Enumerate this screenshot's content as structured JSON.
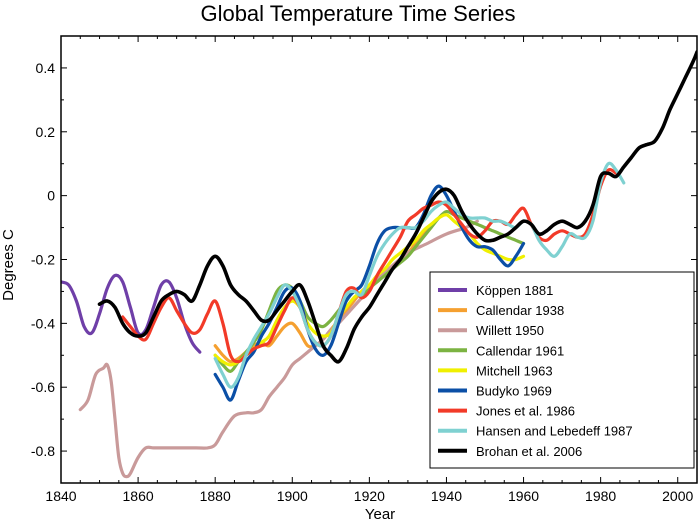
{
  "chart_data": {
    "type": "line",
    "title": "Global Temperature Time Series",
    "xlabel": "Year",
    "ylabel": "Degrees C",
    "xlim": [
      1840,
      2005
    ],
    "ylim": [
      -0.9,
      0.5
    ],
    "xticks": [
      1840,
      1860,
      1880,
      1900,
      1920,
      1940,
      1960,
      1980,
      2000
    ],
    "yticks": [
      -0.8,
      -0.6,
      -0.4,
      -0.2,
      0,
      0.2,
      0.4
    ],
    "ytick_labels": [
      "-0.8",
      "-0.6",
      "-0.4",
      "-0.2",
      "0",
      "0.2",
      "0.4"
    ],
    "legend_position": "lower-right",
    "grid": false,
    "series": [
      {
        "name": "Köppen 1881",
        "color": "#6f3fa8",
        "x": [
          1840,
          1842,
          1844,
          1846,
          1848,
          1850,
          1852,
          1854,
          1856,
          1858,
          1860,
          1862,
          1864,
          1866,
          1868,
          1870,
          1872,
          1874,
          1876
        ],
        "y": [
          -0.27,
          -0.28,
          -0.33,
          -0.41,
          -0.43,
          -0.37,
          -0.29,
          -0.25,
          -0.27,
          -0.35,
          -0.43,
          -0.42,
          -0.35,
          -0.28,
          -0.27,
          -0.32,
          -0.4,
          -0.46,
          -0.49
        ]
      },
      {
        "name": "Callendar 1938",
        "color": "#f5a030",
        "x": [
          1880,
          1882,
          1884,
          1886,
          1888,
          1890,
          1892,
          1894,
          1896,
          1898,
          1900,
          1902,
          1904,
          1906,
          1908,
          1910,
          1912,
          1914,
          1916,
          1918,
          1920,
          1922,
          1924,
          1926,
          1928,
          1930,
          1932,
          1934,
          1936
        ],
        "y": [
          -0.47,
          -0.5,
          -0.52,
          -0.51,
          -0.49,
          -0.47,
          -0.46,
          -0.47,
          -0.44,
          -0.41,
          -0.4,
          -0.43,
          -0.47,
          -0.47,
          -0.45,
          -0.42,
          -0.39,
          -0.36,
          -0.33,
          -0.3,
          -0.28,
          -0.26,
          -0.24,
          -0.22,
          -0.2,
          -0.18,
          -0.15,
          -0.12,
          -0.1
        ]
      },
      {
        "name": "Willett 1950",
        "color": "#c99a9a",
        "x": [
          1845,
          1847,
          1849,
          1851,
          1852,
          1853,
          1854,
          1855,
          1856,
          1857,
          1858,
          1860,
          1862,
          1864,
          1866,
          1870,
          1875,
          1878,
          1880,
          1882,
          1885,
          1888,
          1890,
          1892,
          1894,
          1896,
          1898,
          1900,
          1902,
          1904,
          1906,
          1908,
          1910,
          1912,
          1915,
          1918,
          1920,
          1925,
          1930,
          1935,
          1940,
          1945,
          1948
        ],
        "y": [
          -0.67,
          -0.64,
          -0.56,
          -0.54,
          -0.53,
          -0.58,
          -0.7,
          -0.82,
          -0.87,
          -0.88,
          -0.87,
          -0.82,
          -0.79,
          -0.79,
          -0.79,
          -0.79,
          -0.79,
          -0.79,
          -0.78,
          -0.74,
          -0.69,
          -0.68,
          -0.68,
          -0.67,
          -0.63,
          -0.6,
          -0.57,
          -0.53,
          -0.51,
          -0.49,
          -0.47,
          -0.45,
          -0.42,
          -0.4,
          -0.36,
          -0.32,
          -0.29,
          -0.23,
          -0.18,
          -0.15,
          -0.12,
          -0.1,
          -0.08
        ]
      },
      {
        "name": "Callendar 1961",
        "color": "#7cb342",
        "x": [
          1880,
          1882,
          1884,
          1886,
          1888,
          1890,
          1892,
          1894,
          1896,
          1898,
          1900,
          1902,
          1904,
          1906,
          1908,
          1910,
          1912,
          1914,
          1916,
          1918,
          1920,
          1922,
          1924,
          1926,
          1928,
          1930,
          1932,
          1934,
          1936,
          1938,
          1940,
          1942,
          1944,
          1946,
          1948,
          1950,
          1952,
          1954,
          1956,
          1958,
          1960
        ],
        "y": [
          -0.5,
          -0.53,
          -0.55,
          -0.52,
          -0.49,
          -0.46,
          -0.42,
          -0.36,
          -0.3,
          -0.28,
          -0.29,
          -0.33,
          -0.38,
          -0.4,
          -0.41,
          -0.39,
          -0.36,
          -0.33,
          -0.3,
          -0.31,
          -0.29,
          -0.27,
          -0.25,
          -0.23,
          -0.21,
          -0.19,
          -0.16,
          -0.13,
          -0.1,
          -0.07,
          -0.05,
          -0.06,
          -0.07,
          -0.08,
          -0.09,
          -0.1,
          -0.11,
          -0.12,
          -0.13,
          -0.14,
          -0.15
        ]
      },
      {
        "name": "Mitchell 1963",
        "color": "#f0f000",
        "x": [
          1880,
          1882,
          1884,
          1886,
          1888,
          1890,
          1892,
          1894,
          1896,
          1898,
          1900,
          1902,
          1904,
          1906,
          1908,
          1910,
          1912,
          1914,
          1916,
          1918,
          1920,
          1922,
          1924,
          1926,
          1928,
          1930,
          1932,
          1934,
          1936,
          1938,
          1940,
          1942,
          1944,
          1946,
          1948,
          1950,
          1952,
          1954,
          1956,
          1958,
          1960
        ],
        "y": [
          -0.5,
          -0.52,
          -0.53,
          -0.52,
          -0.5,
          -0.48,
          -0.46,
          -0.44,
          -0.39,
          -0.35,
          -0.33,
          -0.35,
          -0.4,
          -0.43,
          -0.44,
          -0.43,
          -0.38,
          -0.35,
          -0.32,
          -0.3,
          -0.28,
          -0.25,
          -0.23,
          -0.2,
          -0.18,
          -0.16,
          -0.14,
          -0.11,
          -0.09,
          -0.07,
          -0.06,
          -0.08,
          -0.1,
          -0.12,
          -0.15,
          -0.17,
          -0.18,
          -0.19,
          -0.2,
          -0.2,
          -0.19
        ]
      },
      {
        "name": "Budyko 1969",
        "color": "#0b4fa6",
        "x": [
          1880,
          1882,
          1884,
          1886,
          1888,
          1890,
          1892,
          1894,
          1896,
          1898,
          1900,
          1902,
          1904,
          1906,
          1908,
          1910,
          1912,
          1914,
          1916,
          1918,
          1920,
          1922,
          1924,
          1926,
          1928,
          1930,
          1932,
          1934,
          1936,
          1938,
          1940,
          1942,
          1944,
          1946,
          1948,
          1950,
          1952,
          1954,
          1956,
          1958,
          1960
        ],
        "y": [
          -0.56,
          -0.6,
          -0.64,
          -0.58,
          -0.52,
          -0.49,
          -0.44,
          -0.4,
          -0.35,
          -0.3,
          -0.29,
          -0.33,
          -0.42,
          -0.48,
          -0.5,
          -0.47,
          -0.4,
          -0.33,
          -0.3,
          -0.28,
          -0.22,
          -0.15,
          -0.11,
          -0.1,
          -0.1,
          -0.1,
          -0.1,
          -0.06,
          0.0,
          0.03,
          0.0,
          -0.05,
          -0.1,
          -0.14,
          -0.16,
          -0.16,
          -0.17,
          -0.2,
          -0.22,
          -0.19,
          -0.15
        ]
      },
      {
        "name": "Jones et al. 1986",
        "color": "#f23a28",
        "x": [
          1856,
          1858,
          1860,
          1862,
          1864,
          1866,
          1868,
          1870,
          1872,
          1874,
          1876,
          1878,
          1880,
          1882,
          1884,
          1886,
          1888,
          1890,
          1892,
          1894,
          1896,
          1898,
          1900,
          1902,
          1904,
          1906,
          1908,
          1910,
          1912,
          1914,
          1916,
          1918,
          1920,
          1922,
          1924,
          1926,
          1928,
          1930,
          1932,
          1934,
          1936,
          1938,
          1940,
          1942,
          1944,
          1946,
          1948,
          1950,
          1952,
          1954,
          1956,
          1958,
          1960,
          1962,
          1964,
          1966,
          1968,
          1970,
          1972,
          1974,
          1976,
          1978,
          1980,
          1982,
          1984
        ],
        "y": [
          -0.38,
          -0.41,
          -0.44,
          -0.45,
          -0.4,
          -0.35,
          -0.32,
          -0.36,
          -0.4,
          -0.43,
          -0.42,
          -0.37,
          -0.33,
          -0.4,
          -0.5,
          -0.52,
          -0.5,
          -0.48,
          -0.47,
          -0.46,
          -0.41,
          -0.36,
          -0.32,
          -0.35,
          -0.42,
          -0.46,
          -0.47,
          -0.44,
          -0.37,
          -0.3,
          -0.29,
          -0.32,
          -0.3,
          -0.25,
          -0.21,
          -0.17,
          -0.13,
          -0.08,
          -0.06,
          -0.04,
          -0.03,
          -0.02,
          -0.03,
          -0.06,
          -0.09,
          -0.12,
          -0.13,
          -0.11,
          -0.08,
          -0.08,
          -0.09,
          -0.06,
          -0.04,
          -0.09,
          -0.13,
          -0.14,
          -0.12,
          -0.11,
          -0.12,
          -0.13,
          -0.12,
          -0.06,
          0.03,
          0.08,
          0.07
        ]
      },
      {
        "name": "Hansen and Lebedeff 1987",
        "color": "#7fd1d1",
        "x": [
          1880,
          1882,
          1884,
          1886,
          1888,
          1890,
          1892,
          1894,
          1896,
          1898,
          1900,
          1902,
          1904,
          1906,
          1908,
          1910,
          1912,
          1914,
          1916,
          1918,
          1920,
          1922,
          1924,
          1926,
          1928,
          1930,
          1932,
          1934,
          1936,
          1938,
          1940,
          1942,
          1944,
          1946,
          1948,
          1950,
          1952,
          1954,
          1956,
          1958,
          1960,
          1962,
          1964,
          1966,
          1968,
          1970,
          1972,
          1974,
          1976,
          1978,
          1980,
          1982,
          1984,
          1986
        ],
        "y": [
          -0.51,
          -0.56,
          -0.6,
          -0.57,
          -0.5,
          -0.45,
          -0.41,
          -0.37,
          -0.32,
          -0.28,
          -0.3,
          -0.35,
          -0.42,
          -0.46,
          -0.47,
          -0.44,
          -0.37,
          -0.31,
          -0.3,
          -0.31,
          -0.25,
          -0.19,
          -0.15,
          -0.12,
          -0.1,
          -0.1,
          -0.1,
          -0.08,
          -0.05,
          -0.03,
          -0.02,
          -0.04,
          -0.06,
          -0.07,
          -0.07,
          -0.07,
          -0.08,
          -0.08,
          -0.09,
          -0.1,
          -0.08,
          -0.09,
          -0.14,
          -0.17,
          -0.19,
          -0.16,
          -0.12,
          -0.13,
          -0.13,
          -0.08,
          0.04,
          0.1,
          0.08,
          0.04
        ]
      },
      {
        "name": "Brohan et al. 2006",
        "color": "#000000",
        "x": [
          1850,
          1852,
          1854,
          1856,
          1858,
          1860,
          1862,
          1864,
          1866,
          1868,
          1870,
          1872,
          1874,
          1876,
          1878,
          1880,
          1882,
          1884,
          1886,
          1888,
          1890,
          1892,
          1894,
          1896,
          1898,
          1900,
          1902,
          1904,
          1906,
          1908,
          1910,
          1912,
          1914,
          1916,
          1918,
          1920,
          1922,
          1924,
          1926,
          1928,
          1930,
          1932,
          1934,
          1936,
          1938,
          1940,
          1942,
          1944,
          1946,
          1948,
          1950,
          1952,
          1954,
          1956,
          1958,
          1960,
          1962,
          1964,
          1966,
          1968,
          1970,
          1972,
          1974,
          1976,
          1978,
          1980,
          1982,
          1984,
          1986,
          1988,
          1990,
          1992,
          1994,
          1996,
          1998,
          2000,
          2002,
          2004,
          2005
        ],
        "y": [
          -0.34,
          -0.33,
          -0.35,
          -0.4,
          -0.43,
          -0.44,
          -0.43,
          -0.38,
          -0.33,
          -0.31,
          -0.3,
          -0.31,
          -0.33,
          -0.28,
          -0.22,
          -0.19,
          -0.22,
          -0.28,
          -0.31,
          -0.33,
          -0.36,
          -0.39,
          -0.39,
          -0.36,
          -0.33,
          -0.3,
          -0.28,
          -0.33,
          -0.4,
          -0.47,
          -0.5,
          -0.52,
          -0.48,
          -0.42,
          -0.38,
          -0.35,
          -0.31,
          -0.27,
          -0.23,
          -0.2,
          -0.16,
          -0.12,
          -0.07,
          -0.02,
          0.01,
          0.02,
          0.0,
          -0.05,
          -0.09,
          -0.12,
          -0.14,
          -0.14,
          -0.13,
          -0.12,
          -0.1,
          -0.08,
          -0.09,
          -0.12,
          -0.11,
          -0.09,
          -0.08,
          -0.09,
          -0.1,
          -0.08,
          -0.03,
          0.06,
          0.07,
          0.06,
          0.09,
          0.12,
          0.15,
          0.16,
          0.17,
          0.21,
          0.27,
          0.32,
          0.37,
          0.42,
          0.45
        ]
      }
    ]
  }
}
